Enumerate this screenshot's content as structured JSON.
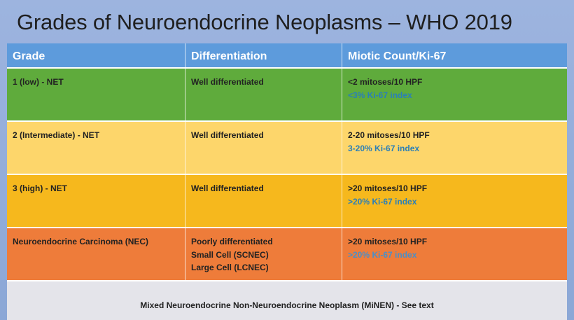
{
  "title": "Grades of Neuroendocrine Neoplasms – WHO 2019",
  "headers": [
    "Grade",
    "Differentiation",
    "Miotic Count/Ki-67"
  ],
  "rows": [
    {
      "grade": "1 (low) - NET",
      "differentiation": [
        "Well differentiated"
      ],
      "mitotic": "<2 mitoses/10 HPF",
      "ki67": "<3% Ki-67 index",
      "color": "#5fab3c"
    },
    {
      "grade": "2 (Intermediate) - NET",
      "differentiation": [
        "Well differentiated"
      ],
      "mitotic": "2-20 mitoses/10 HPF",
      "ki67": "3-20% Ki-67 index",
      "color": "#fdd66b"
    },
    {
      "grade": "3 (high) - NET",
      "differentiation": [
        "Well differentiated"
      ],
      "mitotic": ">20 mitoses/10 HPF",
      "ki67": ">20% Ki-67 index",
      "color": "#f6b81d"
    },
    {
      "grade": "Neuroendocrine Carcinoma (NEC)",
      "differentiation": [
        "Poorly differentiated",
        "Small Cell (SCNEC)",
        "Large Cell (LCNEC)"
      ],
      "mitotic": ">20 mitoses/10 HPF",
      "ki67": ">20% Ki-67 index",
      "color": "#ee7c3a"
    }
  ],
  "footer": "Mixed Neuroendocrine Non-Neuroendocrine Neoplasm (MiNEN) - See text"
}
